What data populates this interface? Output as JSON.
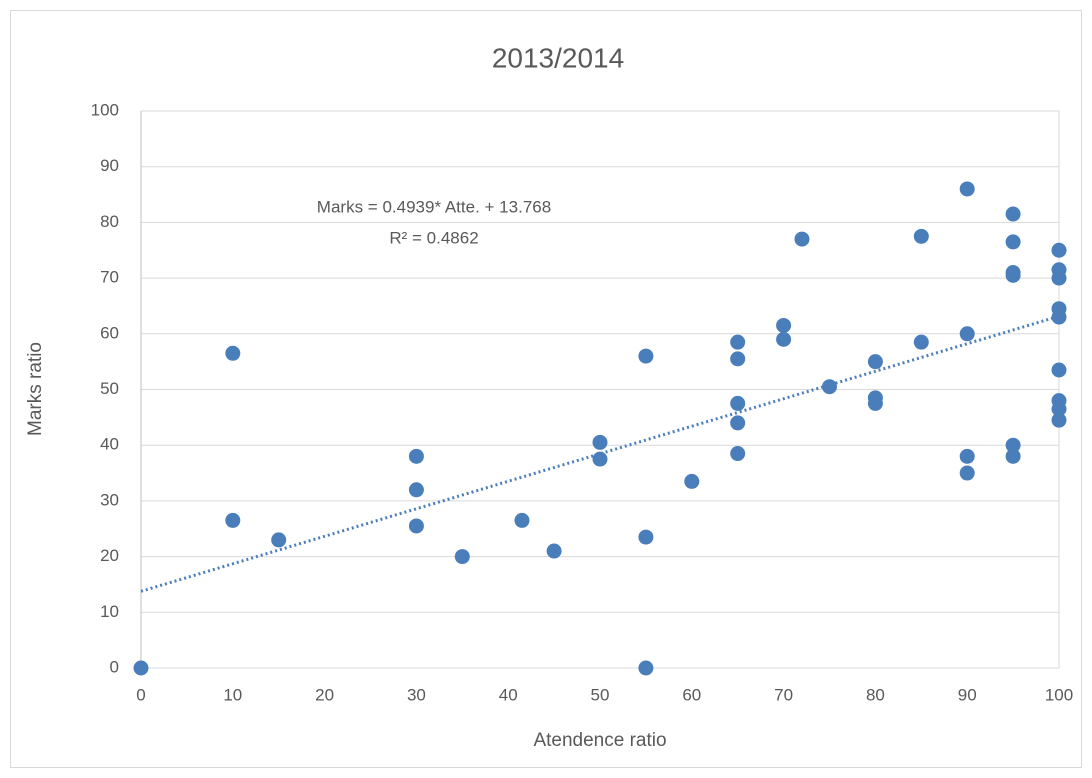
{
  "chart_data": {
    "type": "scatter",
    "title": "2013/2014",
    "x_label": "Atendence ratio",
    "y_label": "Marks ratio",
    "xlim": [
      0,
      100
    ],
    "xticks": [
      0,
      10,
      20,
      30,
      40,
      50,
      60,
      70,
      80,
      90,
      100
    ],
    "ylim": [
      0,
      100
    ],
    "yticks": [
      0,
      10,
      20,
      30,
      40,
      50,
      60,
      70,
      80,
      90,
      100
    ],
    "grid": true,
    "color": "#4a7ebb",
    "x": [
      0,
      10,
      10,
      15,
      30,
      30,
      30,
      35,
      41.5,
      45,
      50,
      50,
      55,
      55,
      55,
      60,
      65,
      65,
      65,
      65,
      65,
      70,
      70,
      72,
      75,
      80,
      80,
      80,
      85,
      85,
      90,
      90,
      90,
      90,
      95,
      95,
      95,
      95,
      95,
      95,
      100,
      100,
      100,
      100,
      100,
      100,
      100,
      100,
      100
    ],
    "values": [
      0,
      56.5,
      26.5,
      23,
      38,
      32,
      25.5,
      20,
      26.5,
      21,
      40.5,
      37.5,
      56,
      23.5,
      0,
      33.5,
      58.5,
      55.5,
      47.5,
      44,
      38.5,
      61.5,
      59,
      77,
      50.5,
      55,
      48.5,
      47.5,
      77.5,
      58.5,
      86,
      60,
      38,
      35,
      81.5,
      76.5,
      71,
      70.5,
      40,
      38,
      75,
      71.5,
      70,
      64.5,
      63,
      53.5,
      48,
      46.5,
      44.5
    ],
    "trendline": {
      "slope": 0.4939,
      "intercept": 13.768,
      "equation": "Marks = 0.4939* Atte. + 13.768",
      "r2": "R² = 0.4862"
    }
  }
}
